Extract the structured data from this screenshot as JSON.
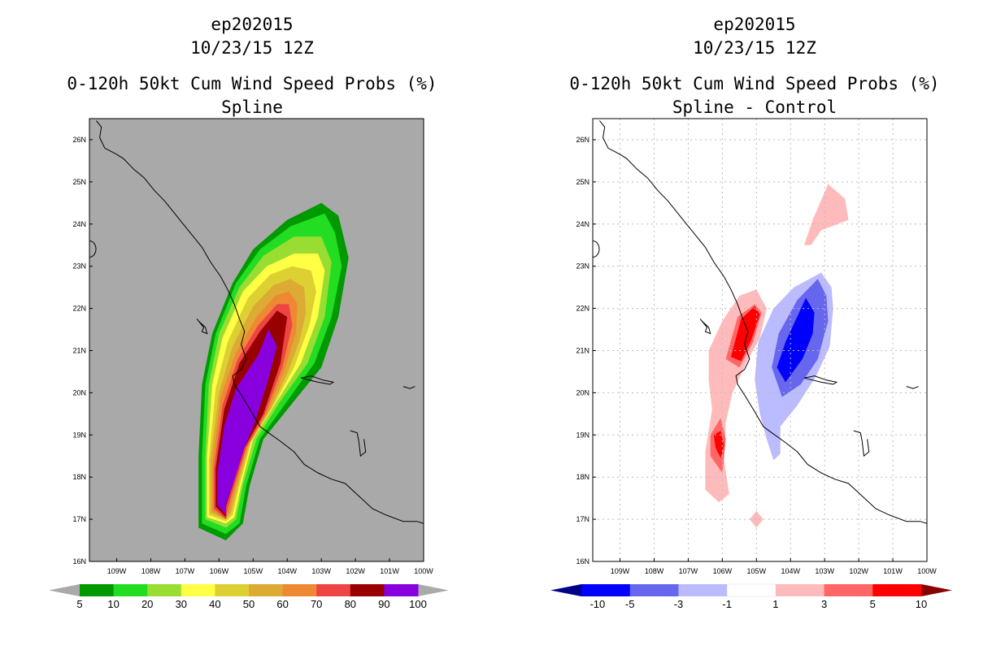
{
  "chart_data": [
    {
      "type": "heatmap",
      "storm_id": "ep202015",
      "valid_time": "10/23/15 12Z",
      "title": "0-120h 50kt Cum Wind Speed Probs (%)",
      "subtitle": "Spline",
      "xlabel": "",
      "ylabel": "",
      "xlim": [
        -109.8,
        -100.0
      ],
      "ylim": [
        16.0,
        26.5
      ],
      "xticks": [
        "109W",
        "108W",
        "107W",
        "106W",
        "105W",
        "104W",
        "103W",
        "102W",
        "101W",
        "100W"
      ],
      "yticks": [
        "16N",
        "17N",
        "18N",
        "19N",
        "20N",
        "21N",
        "22N",
        "23N",
        "24N",
        "25N",
        "26N"
      ],
      "background_color": "#a9a9a9",
      "grid": false,
      "colorbar": {
        "levels": [
          "5",
          "10",
          "20",
          "30",
          "40",
          "50",
          "60",
          "70",
          "80",
          "90",
          "100"
        ],
        "colors": [
          "#009900",
          "#22dd22",
          "#99dd33",
          "#ffff44",
          "#ddd033",
          "#ddaa33",
          "#ee8833",
          "#ee4444",
          "#990000",
          "#8800dd"
        ],
        "low_arrow_color": "#aaaaaa",
        "high_arrow_color": "#aaaaaa"
      },
      "probability_bands_percent": {
        "5": [
          [
            -105.8,
            16.5
          ],
          [
            -106.6,
            16.8
          ],
          [
            -106.6,
            18.5
          ],
          [
            -106.5,
            20.2
          ],
          [
            -106.2,
            21.4
          ],
          [
            -105.6,
            22.6
          ],
          [
            -105.0,
            23.4
          ],
          [
            -104.0,
            24.1
          ],
          [
            -103.0,
            24.5
          ],
          [
            -102.5,
            24.2
          ],
          [
            -102.2,
            23.2
          ],
          [
            -102.5,
            21.8
          ],
          [
            -103.0,
            20.6
          ],
          [
            -103.8,
            19.8
          ],
          [
            -104.7,
            18.9
          ],
          [
            -105.1,
            17.8
          ],
          [
            -105.3,
            16.9
          ]
        ],
        "10": [
          [
            -105.8,
            16.65
          ],
          [
            -106.5,
            16.9
          ],
          [
            -106.5,
            18.5
          ],
          [
            -106.4,
            20.2
          ],
          [
            -106.1,
            21.4
          ],
          [
            -105.5,
            22.6
          ],
          [
            -104.8,
            23.4
          ],
          [
            -103.9,
            23.95
          ],
          [
            -102.9,
            24.25
          ],
          [
            -102.6,
            23.8
          ],
          [
            -102.4,
            23.0
          ],
          [
            -102.7,
            21.8
          ],
          [
            -103.2,
            20.7
          ],
          [
            -104.0,
            19.8
          ],
          [
            -104.8,
            18.9
          ],
          [
            -105.2,
            17.8
          ],
          [
            -105.4,
            16.9
          ]
        ],
        "20": [
          [
            -105.8,
            16.8
          ],
          [
            -106.4,
            17.0
          ],
          [
            -106.4,
            18.5
          ],
          [
            -106.3,
            20.2
          ],
          [
            -106.0,
            21.4
          ],
          [
            -105.4,
            22.5
          ],
          [
            -104.7,
            23.25
          ],
          [
            -103.8,
            23.7
          ],
          [
            -103.0,
            23.7
          ],
          [
            -102.7,
            23.1
          ],
          [
            -102.9,
            21.8
          ],
          [
            -103.4,
            20.7
          ],
          [
            -104.2,
            19.8
          ],
          [
            -104.9,
            18.9
          ],
          [
            -105.3,
            17.8
          ],
          [
            -105.5,
            17.0
          ]
        ],
        "30": [
          [
            -105.8,
            16.9
          ],
          [
            -106.35,
            17.05
          ],
          [
            -106.35,
            18.5
          ],
          [
            -106.2,
            20.2
          ],
          [
            -105.9,
            21.3
          ],
          [
            -105.3,
            22.4
          ],
          [
            -104.6,
            23.0
          ],
          [
            -103.8,
            23.3
          ],
          [
            -103.1,
            23.3
          ],
          [
            -102.9,
            22.9
          ],
          [
            -103.1,
            21.8
          ],
          [
            -103.6,
            20.7
          ],
          [
            -104.3,
            19.8
          ],
          [
            -105.0,
            18.9
          ],
          [
            -105.35,
            17.8
          ],
          [
            -105.55,
            17.05
          ]
        ],
        "40": [
          [
            -105.8,
            16.95
          ],
          [
            -106.3,
            17.1
          ],
          [
            -106.3,
            18.4
          ],
          [
            -106.1,
            20.1
          ],
          [
            -105.75,
            21.2
          ],
          [
            -105.15,
            22.25
          ],
          [
            -104.5,
            22.8
          ],
          [
            -103.85,
            23.0
          ],
          [
            -103.3,
            22.9
          ],
          [
            -103.15,
            22.4
          ],
          [
            -103.35,
            21.6
          ],
          [
            -103.8,
            20.6
          ],
          [
            -104.4,
            19.7
          ],
          [
            -105.05,
            18.85
          ],
          [
            -105.4,
            17.8
          ],
          [
            -105.6,
            17.1
          ]
        ],
        "50": [
          [
            -105.8,
            17.0
          ],
          [
            -106.25,
            17.15
          ],
          [
            -106.25,
            18.4
          ],
          [
            -106.0,
            20.0
          ],
          [
            -105.6,
            21.1
          ],
          [
            -105.0,
            22.05
          ],
          [
            -104.4,
            22.55
          ],
          [
            -103.9,
            22.7
          ],
          [
            -103.5,
            22.5
          ],
          [
            -103.45,
            21.9
          ],
          [
            -103.65,
            21.2
          ],
          [
            -104.0,
            20.45
          ],
          [
            -104.5,
            19.6
          ],
          [
            -105.1,
            18.8
          ],
          [
            -105.45,
            17.8
          ],
          [
            -105.65,
            17.15
          ]
        ],
        "60": [
          [
            -105.8,
            17.0
          ],
          [
            -106.2,
            17.2
          ],
          [
            -106.2,
            18.3
          ],
          [
            -105.95,
            19.9
          ],
          [
            -105.5,
            20.95
          ],
          [
            -104.9,
            21.8
          ],
          [
            -104.35,
            22.3
          ],
          [
            -103.95,
            22.4
          ],
          [
            -103.7,
            22.1
          ],
          [
            -103.75,
            21.4
          ],
          [
            -104.1,
            20.5
          ],
          [
            -104.6,
            19.5
          ],
          [
            -105.15,
            18.75
          ],
          [
            -105.5,
            17.8
          ],
          [
            -105.7,
            17.2
          ]
        ],
        "70": [
          [
            -105.8,
            17.0
          ],
          [
            -106.15,
            17.25
          ],
          [
            -106.15,
            18.2
          ],
          [
            -105.9,
            19.7
          ],
          [
            -105.45,
            20.8
          ],
          [
            -104.85,
            21.6
          ],
          [
            -104.3,
            22.1
          ],
          [
            -103.95,
            22.1
          ],
          [
            -103.85,
            21.6
          ],
          [
            -104.15,
            20.6
          ],
          [
            -104.65,
            19.5
          ],
          [
            -105.2,
            18.7
          ],
          [
            -105.55,
            17.8
          ],
          [
            -105.75,
            17.25
          ]
        ],
        "80": [
          [
            -105.8,
            17.05
          ],
          [
            -106.1,
            17.3
          ],
          [
            -106.1,
            18.2
          ],
          [
            -105.85,
            19.6
          ],
          [
            -105.4,
            20.7
          ],
          [
            -104.8,
            21.45
          ],
          [
            -104.3,
            21.95
          ],
          [
            -104.0,
            21.8
          ],
          [
            -104.2,
            20.7
          ],
          [
            -104.7,
            19.5
          ],
          [
            -105.25,
            18.7
          ],
          [
            -105.6,
            17.8
          ],
          [
            -105.8,
            17.3
          ]
        ],
        "90": [
          [
            -105.8,
            17.1
          ],
          [
            -106.05,
            17.35
          ],
          [
            -106.05,
            18.1
          ],
          [
            -105.85,
            19.2
          ],
          [
            -105.5,
            20.1
          ],
          [
            -104.85,
            20.9
          ],
          [
            -104.55,
            21.5
          ],
          [
            -104.3,
            21.1
          ],
          [
            -104.6,
            20.2
          ],
          [
            -104.95,
            19.3
          ],
          [
            -105.3,
            18.6
          ],
          [
            -105.6,
            17.8
          ],
          [
            -105.8,
            17.35
          ]
        ]
      }
    },
    {
      "type": "heatmap",
      "storm_id": "ep202015",
      "valid_time": "10/23/15 12Z",
      "title": "0-120h 50kt Cum Wind Speed Probs (%)",
      "subtitle": "Spline - Control",
      "xlabel": "",
      "ylabel": "",
      "xlim": [
        -109.8,
        -100.0
      ],
      "ylim": [
        16.0,
        26.5
      ],
      "xticks": [
        "109W",
        "108W",
        "107W",
        "106W",
        "105W",
        "104W",
        "103W",
        "102W",
        "101W",
        "100W"
      ],
      "yticks": [
        "16N",
        "17N",
        "18N",
        "19N",
        "20N",
        "21N",
        "22N",
        "23N",
        "24N",
        "25N",
        "26N"
      ],
      "background_color": "#ffffff",
      "grid": true,
      "colorbar": {
        "levels": [
          "-10",
          "-5",
          "-3",
          "-1",
          "1",
          "3",
          "5",
          "10"
        ],
        "colors": [
          "#0000ff",
          "#6666ee",
          "#bbbbff",
          "#ffffff",
          "#ffbbbb",
          "#ff6666",
          "#ff0000"
        ],
        "low_arrow_color": "#000088",
        "high_arrow_color": "#880000"
      },
      "difference_features": [
        {
          "sign": "positive",
          "level": "1",
          "points": [
            [
              -106.4,
              21.0
            ],
            [
              -106.0,
              21.7
            ],
            [
              -105.5,
              22.3
            ],
            [
              -105.0,
              22.45
            ],
            [
              -104.7,
              22.0
            ],
            [
              -104.9,
              21.3
            ],
            [
              -105.3,
              20.7
            ],
            [
              -105.7,
              20.0
            ],
            [
              -105.9,
              19.3
            ],
            [
              -105.95,
              18.4
            ],
            [
              -105.8,
              17.6
            ],
            [
              -106.1,
              17.4
            ],
            [
              -106.5,
              17.7
            ],
            [
              -106.5,
              18.6
            ],
            [
              -106.3,
              19.6
            ],
            [
              -106.4,
              20.3
            ]
          ]
        },
        {
          "sign": "positive",
          "level": "3",
          "points": [
            [
              -105.9,
              20.8
            ],
            [
              -105.55,
              21.8
            ],
            [
              -105.05,
              22.1
            ],
            [
              -104.85,
              21.9
            ],
            [
              -105.1,
              21.2
            ],
            [
              -105.5,
              20.6
            ]
          ]
        },
        {
          "sign": "positive",
          "level": "3",
          "points": [
            [
              -106.05,
              19.4
            ],
            [
              -105.9,
              18.9
            ],
            [
              -106.0,
              18.1
            ],
            [
              -106.35,
              18.5
            ],
            [
              -106.35,
              19.0
            ]
          ]
        },
        {
          "sign": "positive",
          "level": "5",
          "points": [
            [
              -105.75,
              20.85
            ],
            [
              -105.45,
              21.75
            ],
            [
              -105.05,
              22.05
            ],
            [
              -104.9,
              21.85
            ],
            [
              -105.15,
              21.25
            ],
            [
              -105.45,
              20.75
            ]
          ]
        },
        {
          "sign": "positive",
          "level": "5",
          "points": [
            [
              -106.05,
              19.1
            ],
            [
              -105.95,
              18.75
            ],
            [
              -106.05,
              18.45
            ],
            [
              -106.2,
              18.7
            ],
            [
              -106.25,
              19.0
            ]
          ]
        },
        {
          "sign": "positive",
          "level": "1",
          "points": [
            [
              -103.6,
              23.5
            ],
            [
              -103.35,
              24.1
            ],
            [
              -102.9,
              24.95
            ],
            [
              -102.4,
              24.6
            ],
            [
              -102.3,
              24.1
            ],
            [
              -103.1,
              23.85
            ],
            [
              -103.4,
              23.5
            ]
          ]
        },
        {
          "sign": "positive",
          "level": "1",
          "points": [
            [
              -105.0,
              16.8
            ],
            [
              -104.8,
              17.0
            ],
            [
              -105.0,
              17.2
            ],
            [
              -105.2,
              17.0
            ]
          ]
        },
        {
          "sign": "negative",
          "level": "-1",
          "points": [
            [
              -103.1,
              22.85
            ],
            [
              -103.9,
              22.5
            ],
            [
              -104.5,
              22.0
            ],
            [
              -104.95,
              21.2
            ],
            [
              -105.05,
              20.3
            ],
            [
              -104.9,
              19.5
            ],
            [
              -104.7,
              18.9
            ],
            [
              -104.5,
              18.4
            ],
            [
              -104.3,
              18.55
            ],
            [
              -104.3,
              19.2
            ],
            [
              -103.8,
              19.7
            ],
            [
              -103.25,
              20.4
            ],
            [
              -102.85,
              21.1
            ],
            [
              -102.75,
              22.0
            ],
            [
              -102.8,
              22.5
            ]
          ]
        },
        {
          "sign": "negative",
          "level": "-3",
          "points": [
            [
              -103.2,
              22.7
            ],
            [
              -103.8,
              22.2
            ],
            [
              -104.35,
              21.4
            ],
            [
              -104.55,
              20.6
            ],
            [
              -104.25,
              19.9
            ],
            [
              -103.7,
              20.2
            ],
            [
              -103.2,
              20.8
            ],
            [
              -102.9,
              21.7
            ],
            [
              -102.95,
              22.3
            ]
          ]
        },
        {
          "sign": "negative",
          "level": "-5",
          "points": [
            [
              -103.55,
              22.25
            ],
            [
              -104.15,
              21.2
            ],
            [
              -104.4,
              20.6
            ],
            [
              -104.15,
              20.25
            ],
            [
              -103.65,
              20.8
            ],
            [
              -103.35,
              21.4
            ],
            [
              -103.3,
              21.9
            ]
          ]
        }
      ]
    }
  ]
}
